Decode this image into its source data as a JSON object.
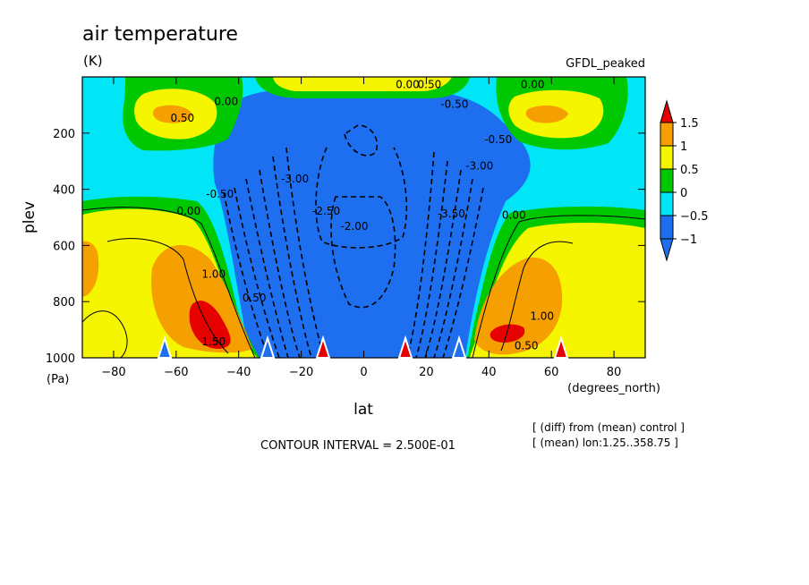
{
  "chart_data": {
    "type": "heatmap",
    "title": "air temperature",
    "units": "(K)",
    "dataset": "GFDL_peaked",
    "xlabel": "lat",
    "xunits": "(degrees_north)",
    "ylabel": "plev",
    "yunits": "(Pa)",
    "xlim": [
      -90,
      90
    ],
    "ylim": [
      1000,
      0
    ],
    "xticks": [
      -80,
      -60,
      -40,
      -20,
      0,
      20,
      40,
      60,
      80
    ],
    "yticks": [
      200,
      400,
      600,
      800,
      1000
    ],
    "colorbar": {
      "levels": [
        -1,
        -0.5,
        0,
        0.5,
        1,
        1.5
      ],
      "tick_labels": [
        "1.5",
        "1",
        "0.5",
        "0",
        "−0.5",
        "−1"
      ],
      "colors": [
        "#1e6ff0",
        "#00e6f6",
        "#00c800",
        "#f5f500",
        "#f5a000",
        "#e60000"
      ],
      "below_color": "#1e6ff0",
      "above_color": "#e60000"
    },
    "contour_interval_text": "CONTOUR INTERVAL = 2.500E-01",
    "note_lines": [
      "[ (diff) from (mean) control ]",
      "[ (mean) lon:1.25..358.75 ]"
    ],
    "contour_labels": [
      {
        "text": "0.50",
        "lat": -58,
        "plev": 160
      },
      {
        "text": "0.00",
        "lat": -44,
        "plev": 100
      },
      {
        "text": "0.00",
        "lat": 14,
        "plev": 40
      },
      {
        "text": "0.50",
        "lat": 21,
        "plev": 40
      },
      {
        "text": "-0.50",
        "lat": 29,
        "plev": 110
      },
      {
        "text": "0.00",
        "lat": 54,
        "plev": 40
      },
      {
        "text": "-3.00",
        "lat": -22,
        "plev": 375
      },
      {
        "text": "-2.50",
        "lat": -12,
        "plev": 490
      },
      {
        "text": "-2.00",
        "lat": -3,
        "plev": 545
      },
      {
        "text": "-3.50",
        "lat": 28,
        "plev": 500
      },
      {
        "text": "-3.00",
        "lat": 37,
        "plev": 330
      },
      {
        "text": "-0.50",
        "lat": 43,
        "plev": 235
      },
      {
        "text": "-0.50",
        "lat": -46,
        "plev": 430
      },
      {
        "text": "0.00",
        "lat": -56,
        "plev": 490
      },
      {
        "text": "0.00",
        "lat": 48,
        "plev": 505
      },
      {
        "text": "1.00",
        "lat": -48,
        "plev": 715
      },
      {
        "text": "0.50",
        "lat": -35,
        "plev": 800
      },
      {
        "text": "1.50",
        "lat": -48,
        "plev": 955
      },
      {
        "text": "1.00",
        "lat": 57,
        "plev": 865
      },
      {
        "text": "0.50",
        "lat": 52,
        "plev": 970
      }
    ]
  }
}
